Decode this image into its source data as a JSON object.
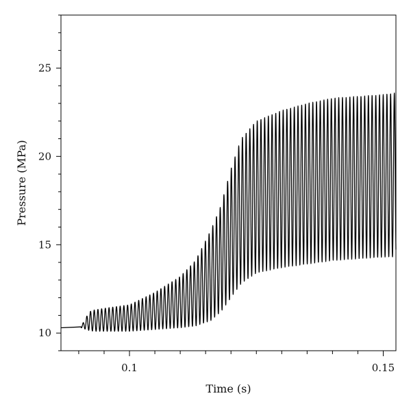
{
  "chart_data": {
    "type": "line",
    "title": "",
    "xlabel": "Time (s)",
    "ylabel": "Pressure (MPa)",
    "xlim": [
      0.0865,
      0.1525
    ],
    "ylim": [
      9.0,
      28.0
    ],
    "x_ticks": [
      {
        "value": 0.1,
        "label": "0.1"
      },
      {
        "value": 0.15,
        "label": "0.15"
      }
    ],
    "x_minor_ticks": [
      0.09,
      0.095,
      0.105,
      0.11,
      0.115,
      0.12,
      0.125,
      0.13,
      0.135,
      0.14,
      0.145
    ],
    "y_ticks": [
      {
        "value": 10,
        "label": "10"
      },
      {
        "value": 15,
        "label": "15"
      },
      {
        "value": 20,
        "label": "20"
      },
      {
        "value": 25,
        "label": "25"
      }
    ],
    "y_minor_step": 1,
    "grid": false,
    "legend": "none",
    "series": [
      {
        "color": "#000000",
        "pre_oscillation": {
          "x": [
            0.0865,
            0.0905
          ],
          "y": [
            10.3,
            10.35
          ]
        },
        "oscillation": {
          "start_x": 0.0905,
          "end_x": 0.1525,
          "period": 0.00073,
          "envelope_x": [
            0.0905,
            0.0915,
            0.092,
            0.093,
            0.095,
            0.1,
            0.105,
            0.11,
            0.113,
            0.116,
            0.118,
            0.12,
            0.122,
            0.125,
            0.13,
            0.135,
            0.14,
            0.145,
            0.15,
            0.1525
          ],
          "envelope_max": [
            10.4,
            10.9,
            11.2,
            11.3,
            11.4,
            11.6,
            12.3,
            13.2,
            14.1,
            15.8,
            17.2,
            19.3,
            21.0,
            22.0,
            22.6,
            23.0,
            23.3,
            23.4,
            23.5,
            23.6
          ],
          "envelope_min": [
            10.3,
            10.2,
            10.15,
            10.1,
            10.1,
            10.1,
            10.2,
            10.3,
            10.4,
            10.7,
            11.2,
            12.0,
            12.8,
            13.4,
            13.7,
            13.9,
            14.1,
            14.2,
            14.3,
            14.3
          ]
        }
      }
    ]
  }
}
